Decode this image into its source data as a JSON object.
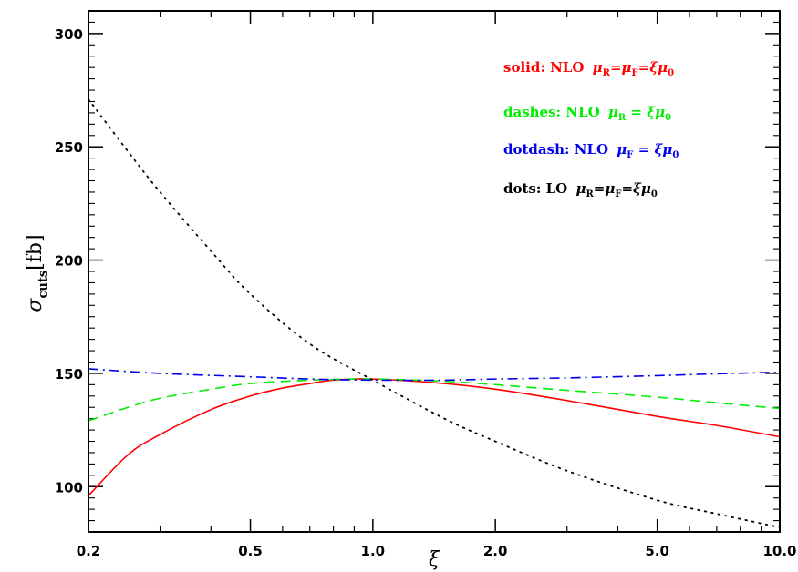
{
  "chart_data": {
    "type": "line",
    "xscale": "log",
    "xlim": [
      0.2,
      10.0
    ],
    "ylim": [
      80,
      310
    ],
    "x_ticks": [
      0.2,
      0.5,
      1.0,
      2.0,
      5.0,
      10.0
    ],
    "x_tick_labels": [
      "0.2",
      "0.5",
      "1.0",
      "2.0",
      "5.0",
      "10.0"
    ],
    "y_ticks": [
      100,
      150,
      200,
      250,
      300
    ],
    "y_tick_labels": [
      "100",
      "150",
      "200",
      "250",
      "300"
    ],
    "xlabel": "ξ",
    "ylabel_main": "σ",
    "ylabel_sub": "cuts",
    "ylabel_unit": "[fb]",
    "legend_position": "top-right",
    "series": [
      {
        "style": "solid",
        "color": "#ff0000",
        "legend_prefix": "solid: NLO ",
        "legend_formula": "μR=μF=ξμ0",
        "x": [
          0.2,
          0.25,
          0.3,
          0.4,
          0.5,
          0.6,
          0.7,
          0.8,
          1.0,
          1.5,
          2.0,
          3.0,
          5.0,
          7.0,
          10.0
        ],
        "y": [
          96,
          114,
          123,
          134,
          140,
          143.5,
          145.5,
          147,
          147.5,
          145.5,
          143,
          138,
          131,
          127,
          122
        ]
      },
      {
        "style": "dashed",
        "color": "#00ee00",
        "legend_prefix": "dashes: NLO ",
        "legend_formula": "μR = ξμ0",
        "x": [
          0.2,
          0.25,
          0.3,
          0.4,
          0.5,
          0.7,
          1.0,
          1.5,
          2.0,
          3.0,
          5.0,
          7.0,
          10.0
        ],
        "y": [
          129,
          135,
          139,
          143,
          145.5,
          147,
          147.5,
          146.5,
          145,
          142.5,
          139.5,
          137,
          134.5
        ]
      },
      {
        "style": "dotdash",
        "color": "#0000ee",
        "legend_prefix": "dotdash: NLO ",
        "legend_formula": "μF = ξμ0",
        "x": [
          0.2,
          0.3,
          0.5,
          0.7,
          1.0,
          1.5,
          2.0,
          3.0,
          5.0,
          7.0,
          10.0
        ],
        "y": [
          152,
          150,
          148.5,
          147.5,
          147,
          147,
          147.5,
          148,
          149,
          149.8,
          150.5
        ]
      },
      {
        "style": "dotted",
        "color": "#000000",
        "legend_prefix": "dots: LO ",
        "legend_formula": "μR=μF=ξμ0",
        "x": [
          0.2,
          0.25,
          0.3,
          0.4,
          0.5,
          0.7,
          1.0,
          1.5,
          2.0,
          3.0,
          5.0,
          7.0,
          10.0
        ],
        "y": [
          271,
          248,
          230,
          204,
          185,
          163,
          147,
          130,
          120,
          107,
          94,
          88,
          82
        ]
      }
    ]
  }
}
